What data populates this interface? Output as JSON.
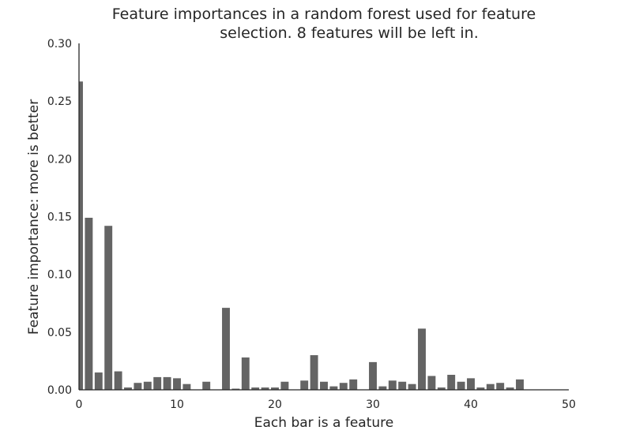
{
  "chart_data": {
    "type": "bar",
    "title_lines": [
      "Feature importances in a random forest used for feature",
      "selection. 8 features will be left in."
    ],
    "xlabel": "Each bar is a feature",
    "ylabel": "Feature importance: more is better",
    "xlim": [
      0,
      50
    ],
    "ylim": [
      0,
      0.3
    ],
    "x_ticks": [
      0,
      10,
      20,
      30,
      40,
      50
    ],
    "x_tick_labels": [
      "0",
      "10",
      "20",
      "30",
      "40",
      "50"
    ],
    "y_ticks": [
      0,
      0.05,
      0.1,
      0.15,
      0.2,
      0.25,
      0.3
    ],
    "y_tick_labels": [
      "0.00",
      "0.05",
      "0.10",
      "0.15",
      "0.20",
      "0.25",
      "0.30"
    ],
    "bar_width": 0.8,
    "grid": false,
    "values": [
      0.267,
      0.149,
      0.015,
      0.142,
      0.016,
      0.002,
      0.006,
      0.007,
      0.011,
      0.011,
      0.01,
      0.005,
      0.0,
      0.007,
      0.0,
      0.071,
      0.001,
      0.028,
      0.002,
      0.002,
      0.002,
      0.007,
      0.0,
      0.008,
      0.03,
      0.007,
      0.003,
      0.006,
      0.009,
      0.0,
      0.024,
      0.003,
      0.008,
      0.007,
      0.005,
      0.053,
      0.012,
      0.002,
      0.013,
      0.007,
      0.01,
      0.002,
      0.005,
      0.006,
      0.002,
      0.009,
      0.0,
      0.0,
      0.0,
      0.0
    ],
    "bar_color": "#646464",
    "axis_color": "#262626"
  }
}
